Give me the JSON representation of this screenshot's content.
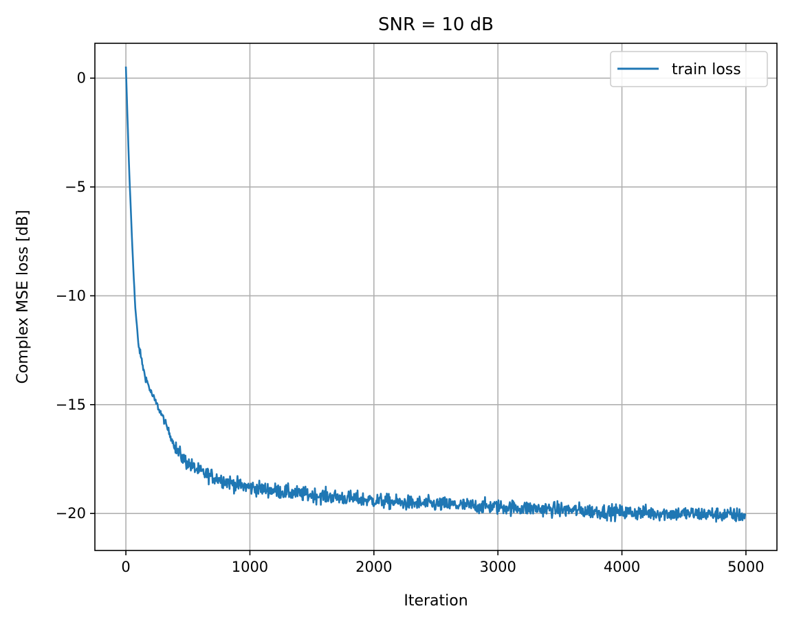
{
  "chart_data": {
    "type": "line",
    "title": "SNR = 10 dB",
    "xlabel": "Iteration",
    "ylabel": "Complex MSE loss [dB]",
    "xlim": [
      -250,
      5250
    ],
    "ylim": [
      -21.7,
      1.6
    ],
    "xticks": [
      0,
      1000,
      2000,
      3000,
      4000,
      5000
    ],
    "xtick_labels": [
      "0",
      "1000",
      "2000",
      "3000",
      "4000",
      "5000"
    ],
    "yticks": [
      0,
      -5,
      -10,
      -15,
      -20
    ],
    "ytick_labels": [
      "0",
      "−5",
      "−10",
      "−15",
      "−20"
    ],
    "grid": true,
    "legend_position": "top-right",
    "colors": {
      "series": "#1f77b4"
    },
    "series": [
      {
        "name": "train loss",
        "x": [
          0,
          25,
          50,
          75,
          100,
          150,
          200,
          250,
          300,
          350,
          400,
          450,
          500,
          550,
          600,
          700,
          800,
          900,
          1000,
          1200,
          1400,
          1600,
          1800,
          2000,
          2200,
          2400,
          2600,
          2800,
          3000,
          3200,
          3400,
          3600,
          3800,
          4000,
          4200,
          4400,
          4600,
          4800,
          5000
        ],
        "y": [
          0.5,
          -4.0,
          -7.5,
          -10.5,
          -12.2,
          -13.6,
          -14.4,
          -15.0,
          -15.6,
          -16.3,
          -17.0,
          -17.4,
          -17.7,
          -17.9,
          -18.1,
          -18.3,
          -18.5,
          -18.7,
          -18.8,
          -18.95,
          -19.1,
          -19.2,
          -19.3,
          -19.4,
          -19.5,
          -19.55,
          -19.6,
          -19.65,
          -19.7,
          -19.75,
          -19.8,
          -19.85,
          -19.9,
          -19.95,
          -19.97,
          -20.0,
          -20.02,
          -20.05,
          -20.1
        ]
      }
    ]
  }
}
